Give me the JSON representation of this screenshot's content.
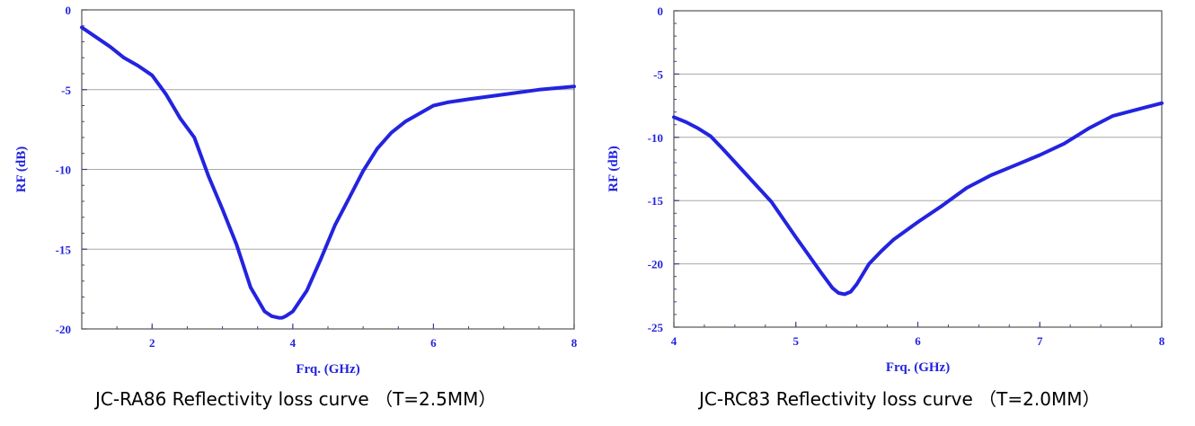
{
  "chart_data": [
    {
      "type": "line",
      "caption": "JC-RA86  Reflectivity loss curve （T=2.5MM）",
      "xlabel": "Frq. (GHz)",
      "ylabel": "RF (dB)",
      "xlim": [
        1,
        8
      ],
      "ylim": [
        -20,
        0
      ],
      "xticks": [
        2,
        4,
        6,
        8
      ],
      "yticks": [
        0,
        -5,
        -10,
        -15,
        -20
      ],
      "grid": "horizontal",
      "color": "#2323e0",
      "series": [
        {
          "x": [
            1.0,
            1.2,
            1.4,
            1.6,
            1.8,
            2.0,
            2.2,
            2.4,
            2.6,
            2.8,
            3.0,
            3.2,
            3.4,
            3.6,
            3.7,
            3.8,
            3.85,
            3.9,
            4.0,
            4.2,
            4.4,
            4.6,
            4.8,
            5.0,
            5.2,
            5.4,
            5.6,
            5.8,
            6.0,
            6.2,
            6.5,
            7.0,
            7.5,
            8.0
          ],
          "y": [
            -1.1,
            -1.7,
            -2.3,
            -3.0,
            -3.5,
            -4.1,
            -5.3,
            -6.8,
            -8.0,
            -10.4,
            -12.5,
            -14.7,
            -17.4,
            -18.9,
            -19.2,
            -19.3,
            -19.3,
            -19.2,
            -18.9,
            -17.6,
            -15.6,
            -13.5,
            -11.8,
            -10.1,
            -8.7,
            -7.7,
            -7.0,
            -6.5,
            -6.0,
            -5.8,
            -5.6,
            -5.3,
            -5.0,
            -4.8
          ]
        }
      ]
    },
    {
      "type": "line",
      "caption": "JC-RC83  Reflectivity loss curve （T=2.0MM）",
      "xlabel": "Frq. (GHz)",
      "ylabel": "RF (dB)",
      "xlim": [
        4,
        8
      ],
      "ylim": [
        -25,
        0
      ],
      "xticks": [
        4,
        5,
        6,
        7,
        8
      ],
      "yticks": [
        0,
        -5,
        -10,
        -15,
        -20,
        -25
      ],
      "grid": "horizontal",
      "color": "#2323e0",
      "series": [
        {
          "x": [
            4.0,
            4.1,
            4.2,
            4.3,
            4.4,
            4.6,
            4.8,
            5.0,
            5.2,
            5.3,
            5.35,
            5.4,
            5.45,
            5.5,
            5.6,
            5.7,
            5.8,
            6.0,
            6.2,
            6.4,
            6.6,
            6.8,
            7.0,
            7.2,
            7.4,
            7.6,
            7.8,
            8.0
          ],
          "y": [
            -8.4,
            -8.8,
            -9.3,
            -9.9,
            -10.9,
            -13.0,
            -15.1,
            -17.9,
            -20.6,
            -21.9,
            -22.3,
            -22.4,
            -22.2,
            -21.6,
            -20.0,
            -19.0,
            -18.1,
            -16.7,
            -15.4,
            -14.0,
            -13.0,
            -12.2,
            -11.4,
            -10.5,
            -9.3,
            -8.3,
            -7.8,
            -7.3
          ]
        }
      ]
    }
  ]
}
